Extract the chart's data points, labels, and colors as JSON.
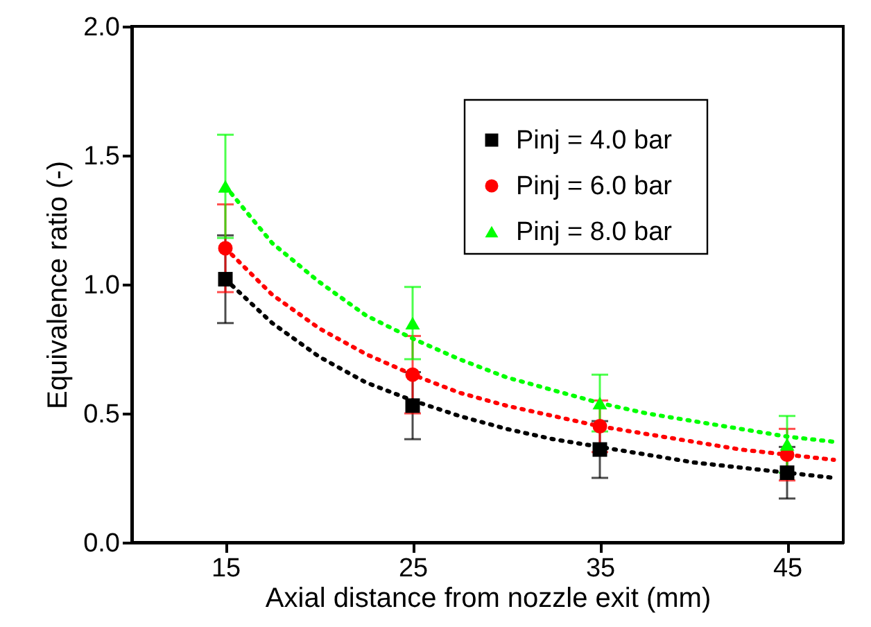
{
  "chart_data": {
    "type": "scatter",
    "xlabel": "Axial distance from nozzle exit (mm)",
    "ylabel": "Equivalence ratio (-)",
    "x": [
      15,
      25,
      35,
      45
    ],
    "xlim": [
      10,
      48
    ],
    "xticks": [
      15,
      25,
      35,
      45
    ],
    "ylim": [
      0,
      2.0
    ],
    "yticks": [
      {
        "value": 0,
        "label": "0.0"
      },
      {
        "value": 0.5,
        "label": "0.5"
      },
      {
        "value": 1,
        "label": "1.0"
      },
      {
        "value": 1.5,
        "label": "1.5"
      },
      {
        "value": 2,
        "label": "2.0"
      }
    ],
    "grid": false,
    "legend": "top right",
    "series": [
      {
        "name": "Pinj = 4.0 bar",
        "color": "#000000",
        "marker": "square",
        "values": [
          1.02,
          0.53,
          0.36,
          0.27
        ],
        "errors": [
          0.17,
          0.13,
          0.11,
          0.1
        ]
      },
      {
        "name": "Pinj = 6.0 bar",
        "color": "#ff0000",
        "marker": "circle",
        "values": [
          1.14,
          0.65,
          0.45,
          0.34
        ],
        "errors": [
          0.17,
          0.15,
          0.1,
          0.1
        ]
      },
      {
        "name": "Pinj = 8.0 bar",
        "color": "#00ff00",
        "marker": "triangle",
        "values": [
          1.38,
          0.85,
          0.54,
          0.38
        ],
        "errors": [
          0.2,
          0.14,
          0.11,
          0.11
        ]
      },
      {
        "type": "line",
        "line_style": "dotted",
        "marker": "none",
        "color": "#000000",
        "x": [
          15,
          17.5,
          20,
          22.5,
          25,
          27.5,
          30,
          32.5,
          35,
          37.5,
          40,
          42.5,
          45,
          47.5
        ],
        "values": [
          1.02,
          0.85,
          0.72,
          0.62,
          0.55,
          0.49,
          0.44,
          0.4,
          0.37,
          0.34,
          0.31,
          0.29,
          0.27,
          0.25
        ]
      },
      {
        "type": "line",
        "line_style": "dotted",
        "marker": "none",
        "color": "#ff0000",
        "x": [
          15,
          17.5,
          20,
          22.5,
          25,
          27.5,
          30,
          32.5,
          35,
          37.5,
          40,
          42.5,
          45,
          47.5
        ],
        "values": [
          1.14,
          0.96,
          0.83,
          0.73,
          0.65,
          0.58,
          0.53,
          0.49,
          0.45,
          0.42,
          0.39,
          0.36,
          0.34,
          0.32
        ]
      },
      {
        "type": "line",
        "line_style": "dotted",
        "marker": "none",
        "color": "#00ff00",
        "x": [
          15,
          17.5,
          20,
          22.5,
          25,
          27.5,
          30,
          32.5,
          35,
          37.5,
          40,
          42.5,
          45,
          47.5
        ],
        "values": [
          1.38,
          1.16,
          1.01,
          0.88,
          0.79,
          0.71,
          0.64,
          0.59,
          0.54,
          0.5,
          0.47,
          0.44,
          0.41,
          0.39
        ]
      }
    ]
  }
}
